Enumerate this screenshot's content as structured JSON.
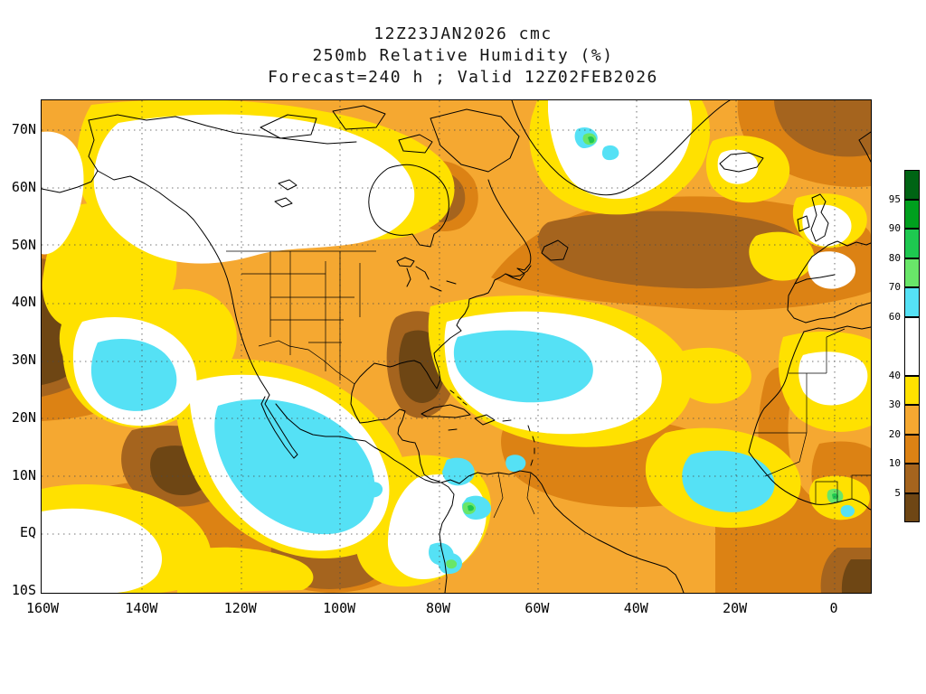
{
  "map": {
    "title_line1": "12Z23JAN2026 cmc",
    "title_line2": "250mb Relative Humidity (%)",
    "title_line3": "Forecast=240 h ; Valid 12Z02FEB2026",
    "y_axis_labels": [
      "70N",
      "60N",
      "50N",
      "40N",
      "30N",
      "20N",
      "10N",
      "EQ",
      "10S"
    ],
    "x_axis_labels": [
      "160W",
      "140W",
      "120W",
      "100W",
      "80W",
      "60W",
      "40W",
      "20W",
      "0"
    ]
  },
  "colorbar": {
    "units": "%",
    "ticks": [
      "95",
      "90",
      "80",
      "70",
      "60",
      "40",
      "30",
      "20",
      "10",
      "5"
    ],
    "segments": [
      {
        "range": ">95",
        "color": "#006414",
        "span": 1
      },
      {
        "range": "90-95",
        "color": "#00A01E",
        "span": 1
      },
      {
        "range": "80-90",
        "color": "#1EC850",
        "span": 1
      },
      {
        "range": "70-80",
        "color": "#69E669",
        "span": 1
      },
      {
        "range": "60-70",
        "color": "#55E1F5",
        "span": 1
      },
      {
        "range": "40-60",
        "color": "#FFFFFF",
        "span": 2
      },
      {
        "range": "30-40",
        "color": "#FFE100",
        "span": 1
      },
      {
        "range": "20-30",
        "color": "#F5A831",
        "span": 1
      },
      {
        "range": "10-20",
        "color": "#DC8214",
        "span": 1
      },
      {
        "range": "5-10",
        "color": "#A5641E",
        "span": 1
      },
      {
        "range": "<5",
        "color": "#6E4614",
        "span": 1
      }
    ]
  },
  "chart_data": {
    "type": "heatmap",
    "title": "250mb Relative Humidity (%)",
    "model": "cmc",
    "init_time": "12Z23JAN2026",
    "forecast_hour": "240 h",
    "valid_time": "12Z02FEB2026",
    "units": "%",
    "contour_levels": [
      5,
      10,
      20,
      30,
      40,
      60,
      70,
      80,
      90,
      95
    ],
    "lat_ticks": [
      "70N",
      "60N",
      "50N",
      "40N",
      "30N",
      "20N",
      "10N",
      "EQ",
      "10S"
    ],
    "lon_ticks": [
      "160W",
      "140W",
      "120W",
      "100W",
      "80W",
      "60W",
      "40W",
      "20W",
      "0"
    ],
    "lat_range": [
      "10S",
      "75N"
    ],
    "lon_range": [
      "160W",
      "7E"
    ],
    "grid": true,
    "legend_position": "right"
  }
}
